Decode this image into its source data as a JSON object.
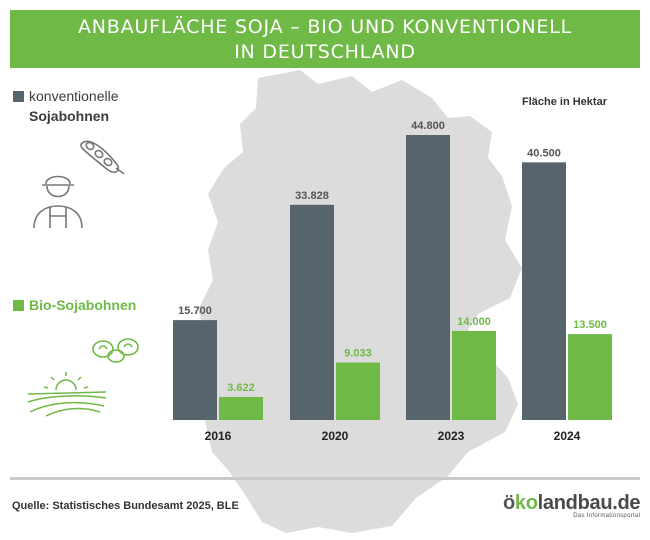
{
  "title": {
    "line1": "ANBAUFLÄCHE SOJA – BIO UND KONVENTIONELL",
    "line2": "IN DEUTSCHLAND"
  },
  "legend": {
    "conventional_line1": "konventionelle",
    "conventional_line2": "Sojabohnen",
    "bio": "Bio-Sojabohnen"
  },
  "unit_label": "Fläche in Hektar",
  "source": "Quelle: Statistisches Bundesamt 2025, BLE",
  "logo": {
    "main_o": "ö",
    "main_k": "ko",
    "main_rest": "landbau.de",
    "sub": "Das Informationsportal"
  },
  "colors": {
    "conventional": "#56646c",
    "bio": "#6fb946",
    "map": "#dcdcdc"
  },
  "chart_data": {
    "type": "bar",
    "title": "ANBAUFLÄCHE SOJA – BIO UND KONVENTIONELL IN DEUTSCHLAND",
    "ylabel": "Fläche in Hektar",
    "categories": [
      "2016",
      "2020",
      "2023",
      "2024"
    ],
    "series": [
      {
        "name": "konventionelle Sojabohnen",
        "values": [
          15700,
          33828,
          44800,
          40500
        ],
        "labels": [
          "15.700",
          "33.828",
          "44.800",
          "40.500"
        ]
      },
      {
        "name": "Bio-Sojabohnen",
        "values": [
          3622,
          9033,
          14000,
          13500
        ],
        "labels": [
          "3.622",
          "9.033",
          "14.000",
          "13.500"
        ]
      }
    ],
    "ylim": [
      0,
      44800
    ],
    "grid": false,
    "legend": "left"
  }
}
